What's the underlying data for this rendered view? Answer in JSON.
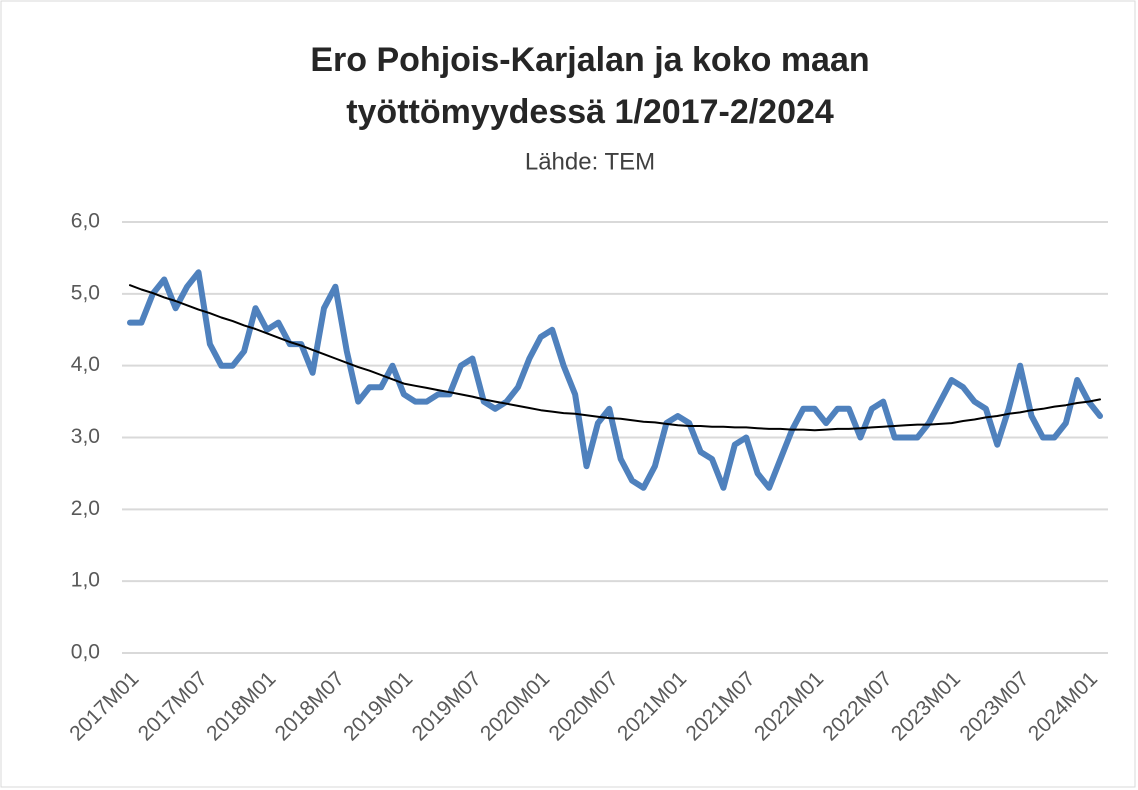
{
  "chart_data": {
    "type": "line",
    "title": [
      "Ero Pohjois-Karjalan ja koko maan",
      "työttömyydessä 1/2017-2/2024"
    ],
    "subtitle": "Lähde: TEM",
    "categories": [
      "2017M01",
      null,
      null,
      null,
      null,
      null,
      "2017M07",
      null,
      null,
      null,
      null,
      null,
      "2018M01",
      null,
      null,
      null,
      null,
      null,
      "2018M07",
      null,
      null,
      null,
      null,
      null,
      "2019M01",
      null,
      null,
      null,
      null,
      null,
      "2019M07",
      null,
      null,
      null,
      null,
      null,
      "2020M01",
      null,
      null,
      null,
      null,
      null,
      "2020M07",
      null,
      null,
      null,
      null,
      null,
      "2021M01",
      null,
      null,
      null,
      null,
      null,
      "2021M07",
      null,
      null,
      null,
      null,
      null,
      "2022M01",
      null,
      null,
      null,
      null,
      null,
      "2022M07",
      null,
      null,
      null,
      null,
      null,
      "2023M01",
      null,
      null,
      null,
      null,
      null,
      "2023M07",
      null,
      null,
      null,
      null,
      null,
      "2024M01",
      null
    ],
    "series": [
      {
        "color": "#4f81bd",
        "values": [
          4.6,
          4.6,
          5.0,
          5.2,
          4.8,
          5.1,
          5.3,
          4.3,
          4.0,
          4.0,
          4.2,
          4.8,
          4.5,
          4.6,
          4.3,
          4.3,
          3.9,
          4.8,
          5.1,
          4.2,
          3.5,
          3.7,
          3.7,
          4.0,
          3.6,
          3.5,
          3.5,
          3.6,
          3.6,
          4.0,
          4.1,
          3.5,
          3.4,
          3.5,
          3.7,
          4.1,
          4.4,
          4.5,
          4.0,
          3.6,
          2.6,
          3.2,
          3.4,
          2.7,
          2.4,
          2.3,
          2.6,
          3.2,
          3.3,
          3.2,
          2.8,
          2.7,
          2.3,
          2.9,
          3.0,
          2.5,
          2.3,
          2.7,
          3.1,
          3.4,
          3.4,
          3.2,
          3.4,
          3.4,
          3.0,
          3.4,
          3.5,
          3.0,
          3.0,
          3.0,
          3.2,
          3.5,
          3.8,
          3.7,
          3.5,
          3.4,
          2.9,
          3.4,
          4.0,
          3.3,
          3.0,
          3.0,
          3.2,
          3.8,
          3.5,
          3.3
        ]
      },
      {
        "color": "#000000",
        "values": [
          5.12,
          5.06,
          5.01,
          4.95,
          4.9,
          4.84,
          4.78,
          4.73,
          4.67,
          4.62,
          4.56,
          4.51,
          4.45,
          4.39,
          4.33,
          4.28,
          4.22,
          4.16,
          4.1,
          4.04,
          3.98,
          3.93,
          3.87,
          3.81,
          3.75,
          3.72,
          3.69,
          3.66,
          3.63,
          3.6,
          3.57,
          3.53,
          3.5,
          3.47,
          3.44,
          3.41,
          3.38,
          3.36,
          3.34,
          3.33,
          3.31,
          3.29,
          3.27,
          3.26,
          3.24,
          3.22,
          3.21,
          3.19,
          3.17,
          3.16,
          3.16,
          3.15,
          3.15,
          3.14,
          3.14,
          3.13,
          3.12,
          3.12,
          3.11,
          3.11,
          3.1,
          3.11,
          3.12,
          3.12,
          3.13,
          3.14,
          3.15,
          3.16,
          3.17,
          3.18,
          3.18,
          3.19,
          3.2,
          3.23,
          3.25,
          3.28,
          3.3,
          3.33,
          3.35,
          3.38,
          3.4,
          3.43,
          3.45,
          3.48,
          3.5,
          3.53
        ]
      }
    ],
    "ylim": [
      0,
      6
    ],
    "yticks": [
      {
        "value": 0,
        "label": "0,0"
      },
      {
        "value": 1,
        "label": "1,0"
      },
      {
        "value": 2,
        "label": "2,0"
      },
      {
        "value": 3,
        "label": "3,0"
      },
      {
        "value": 4,
        "label": "4,0"
      },
      {
        "value": 5,
        "label": "5,0"
      },
      {
        "value": 6,
        "label": "6,0"
      }
    ],
    "grid": true
  }
}
